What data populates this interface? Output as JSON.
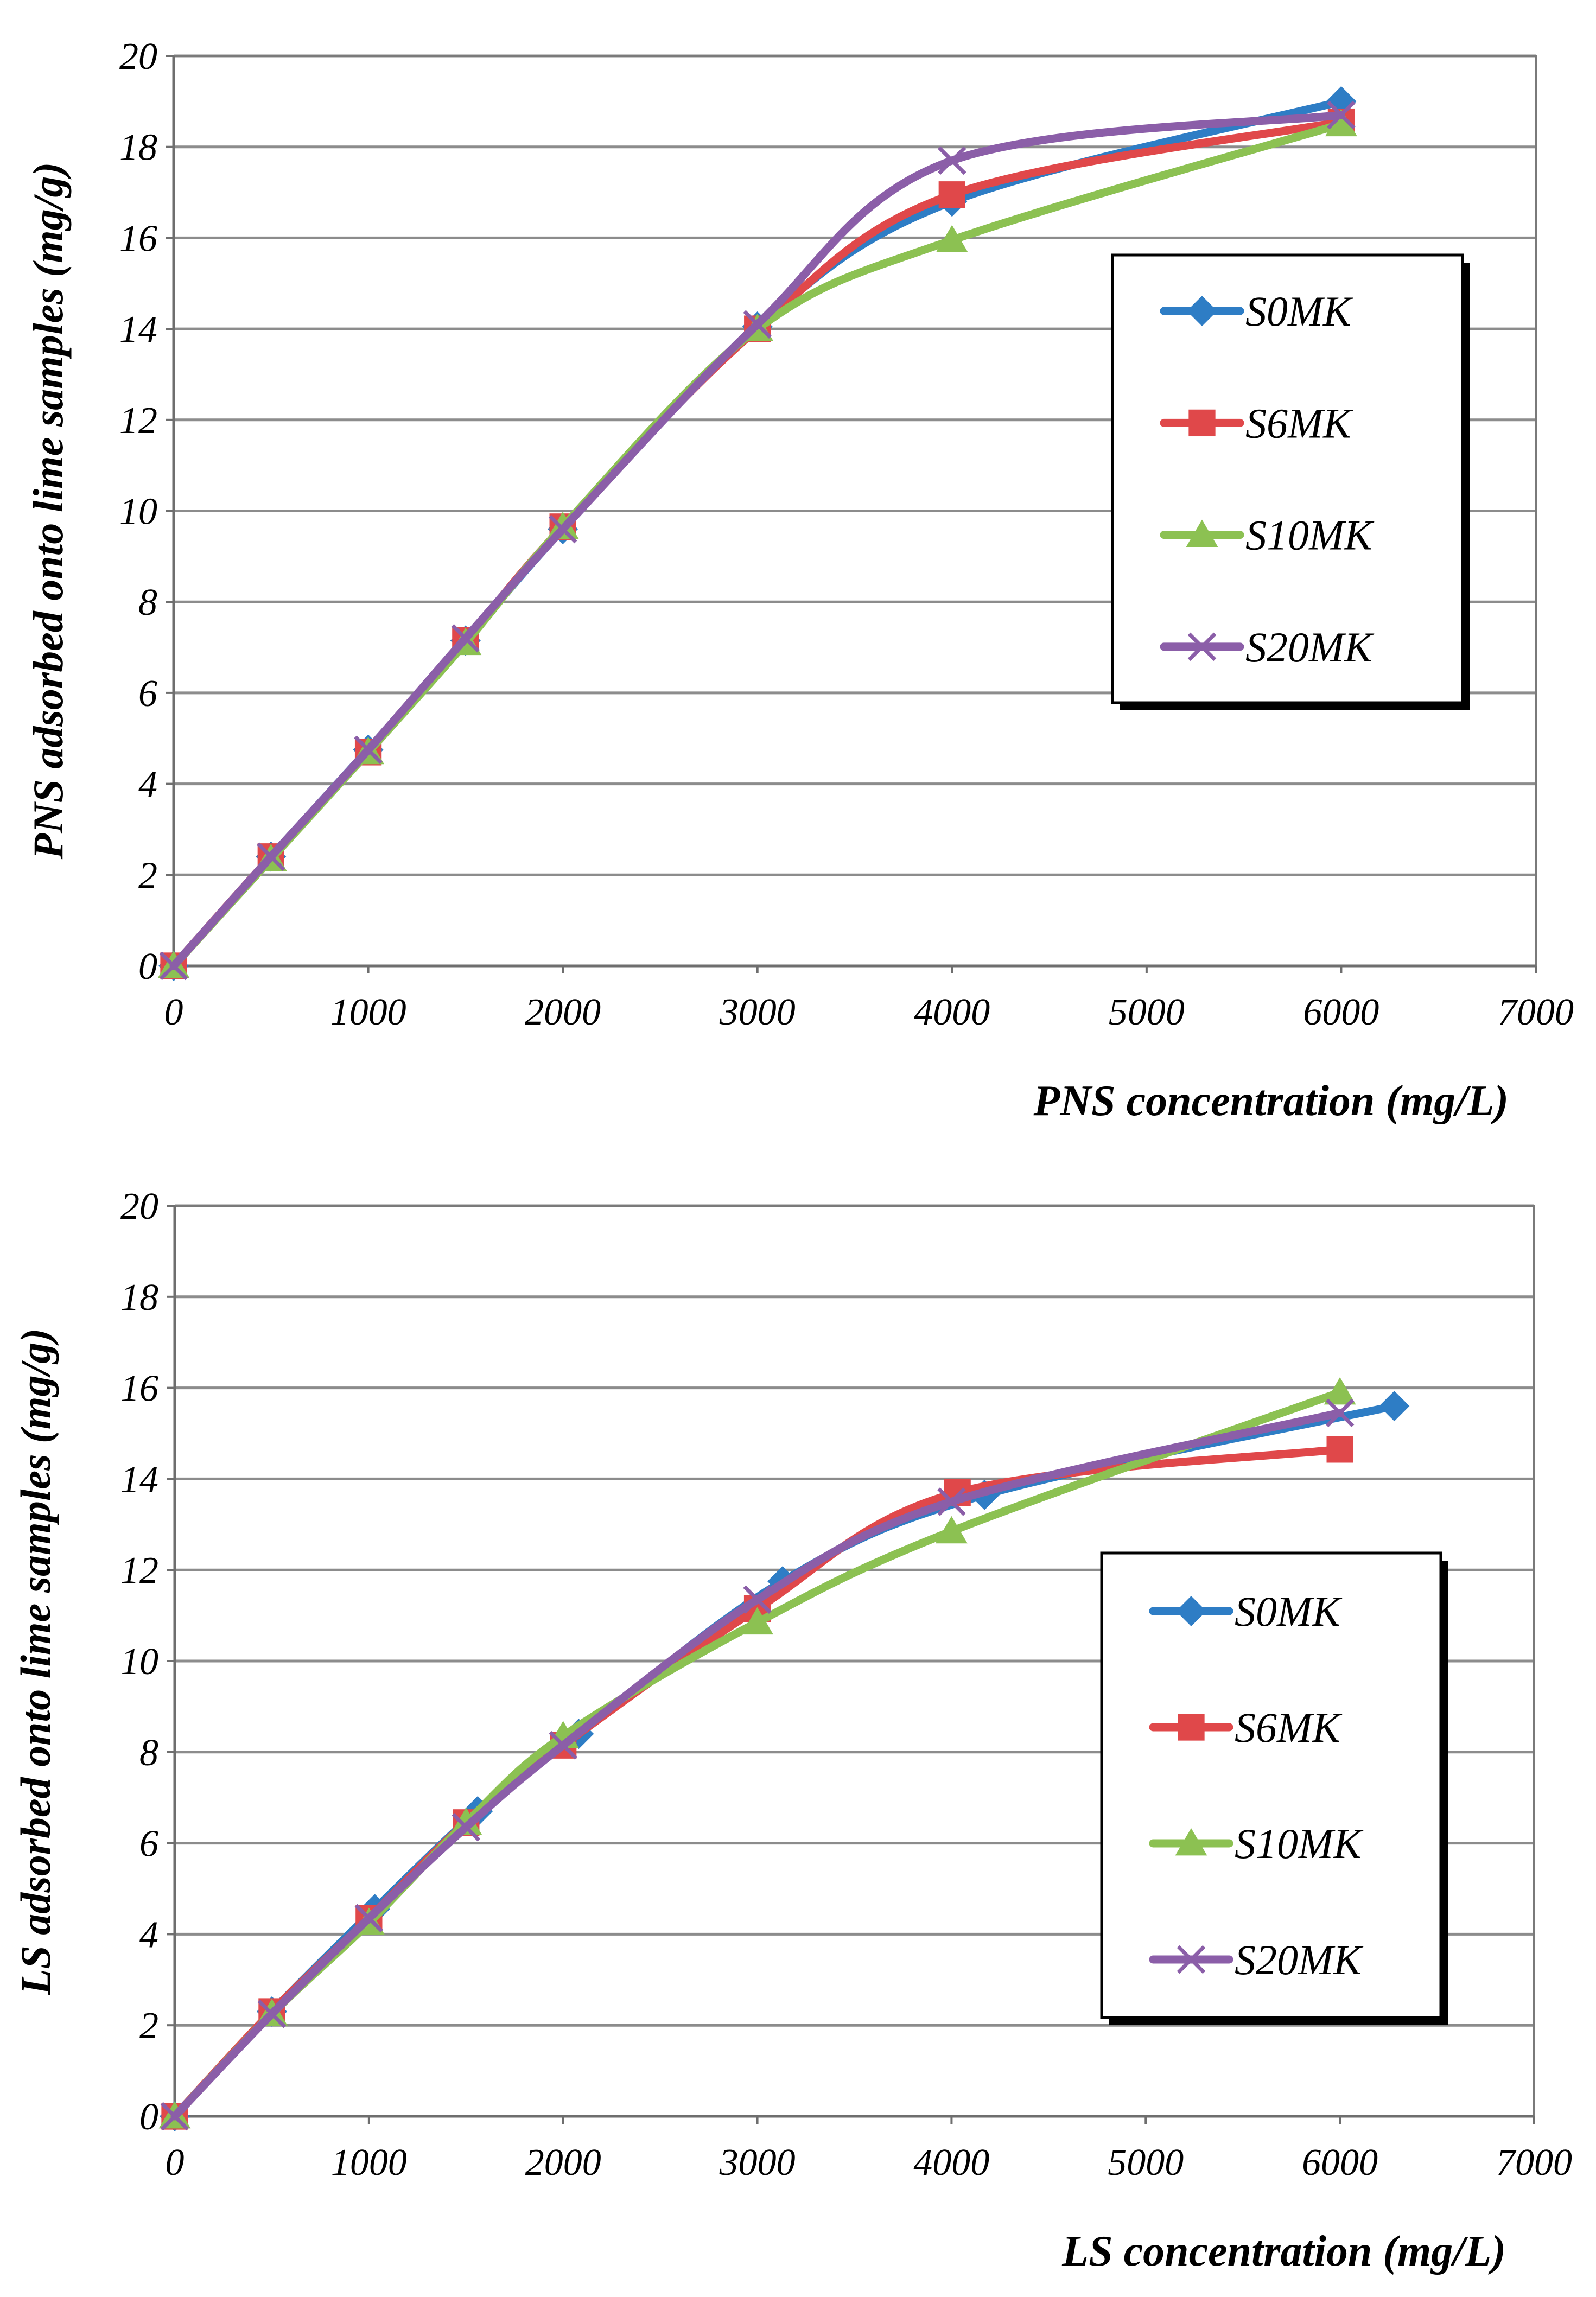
{
  "chart_data": [
    {
      "type": "line",
      "ylabel": "PNS adsorbed onto lime samples (mg/g)",
      "xlabel": "PNS concentration (mg/L)",
      "xlim": [
        0,
        7000
      ],
      "ylim": [
        0,
        20
      ],
      "xticks": [
        "0",
        "1000",
        "2000",
        "3000",
        "4000",
        "5000",
        "6000",
        "7000"
      ],
      "yticks": [
        "0",
        "2",
        "4",
        "6",
        "8",
        "10",
        "12",
        "14",
        "16",
        "18",
        "20"
      ],
      "grid": true,
      "legend_position": "right",
      "series": [
        {
          "name": "S0MK",
          "color": "#2E7DC5",
          "marker": "diamond",
          "x": [
            0,
            500,
            1000,
            1500,
            2000,
            3000,
            4000,
            6000
          ],
          "y": [
            0,
            2.4,
            4.75,
            7.15,
            9.6,
            14.05,
            16.8,
            19.0
          ]
        },
        {
          "name": "S6MK",
          "color": "#E0484A",
          "marker": "square",
          "x": [
            0,
            500,
            1000,
            1500,
            2000,
            3000,
            4000,
            6000
          ],
          "y": [
            0,
            2.4,
            4.7,
            7.15,
            9.65,
            14.0,
            16.95,
            18.55
          ]
        },
        {
          "name": "S10MK",
          "color": "#8CC152",
          "marker": "triangle",
          "x": [
            0,
            500,
            1000,
            1500,
            2000,
            3000,
            4000,
            6000
          ],
          "y": [
            0,
            2.35,
            4.7,
            7.1,
            9.65,
            14.0,
            15.95,
            18.5
          ]
        },
        {
          "name": "S20MK",
          "color": "#8B5EA8",
          "marker": "x",
          "x": [
            0,
            500,
            1000,
            1500,
            2000,
            3000,
            4000,
            6000
          ],
          "y": [
            0,
            2.4,
            4.75,
            7.2,
            9.6,
            14.1,
            17.7,
            18.7
          ]
        }
      ]
    },
    {
      "type": "line",
      "ylabel": "LS adsorbed onto lime samples (mg/g)",
      "xlabel": "LS concentration (mg/L)",
      "xlim": [
        0,
        7000
      ],
      "ylim": [
        0,
        20
      ],
      "xticks": [
        "0",
        "1000",
        "2000",
        "3000",
        "4000",
        "5000",
        "6000",
        "7000"
      ],
      "yticks": [
        "0",
        "2",
        "4",
        "6",
        "8",
        "10",
        "12",
        "14",
        "16",
        "18",
        "20"
      ],
      "grid": true,
      "legend_position": "right",
      "series": [
        {
          "name": "S0MK",
          "color": "#2E7DC5",
          "marker": "diamond",
          "x": [
            0,
            500,
            1030,
            1560,
            2080,
            3130,
            4170,
            6280
          ],
          "y": [
            0,
            2.3,
            4.55,
            6.7,
            8.4,
            11.75,
            13.65,
            15.6
          ]
        },
        {
          "name": "S6MK",
          "color": "#E0484A",
          "marker": "square",
          "x": [
            0,
            500,
            1000,
            1500,
            2000,
            3000,
            4030,
            6000
          ],
          "y": [
            0,
            2.3,
            4.35,
            6.45,
            8.15,
            11.15,
            13.7,
            14.65
          ]
        },
        {
          "name": "S10MK",
          "color": "#8CC152",
          "marker": "triangle",
          "x": [
            0,
            500,
            1000,
            1500,
            2000,
            3000,
            4000,
            6000
          ],
          "y": [
            0,
            2.25,
            4.25,
            6.45,
            8.35,
            10.85,
            12.85,
            15.9
          ]
        },
        {
          "name": "S20MK",
          "color": "#8B5EA8",
          "marker": "x",
          "x": [
            0,
            500,
            1000,
            1500,
            2000,
            3000,
            4000,
            6000
          ],
          "y": [
            0,
            2.25,
            4.35,
            6.35,
            8.15,
            11.35,
            13.5,
            15.45
          ]
        }
      ]
    }
  ]
}
